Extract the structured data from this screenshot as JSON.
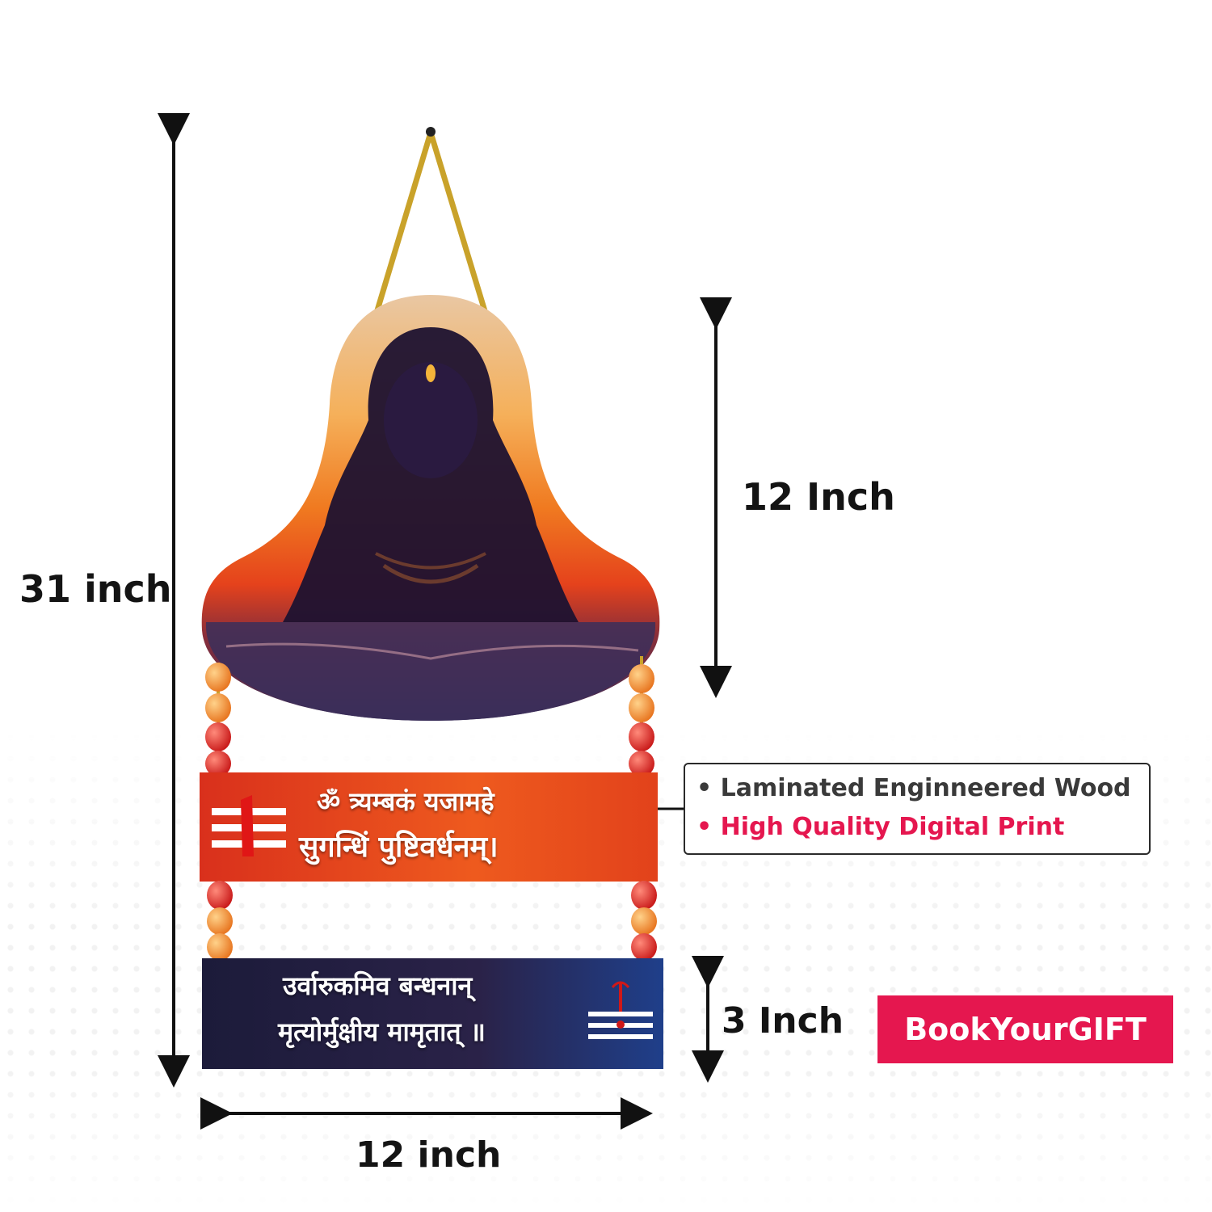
{
  "dimensions": {
    "total_height": "31 inch",
    "top_height": "12 Inch",
    "bottom_height": "3 Inch",
    "width": "12 inch"
  },
  "mantra": {
    "line1": "ॐ त्र्यम्बकं यजामहे",
    "line2": "सुगन्धिं पुष्टिवर्धनम्।",
    "line3": "उर्वारुकमिव बन्धनान्",
    "line4": "मृत्योर्मुक्षीय मामृतात् ॥"
  },
  "features": {
    "item1": "Laminated Enginneered Wood",
    "item2": "High Quality Digital Print",
    "item1_color": "#3a3a3a",
    "item2_color": "#e5174f"
  },
  "brand": {
    "name": "BookYourGIFT",
    "color": "#e5174f"
  }
}
